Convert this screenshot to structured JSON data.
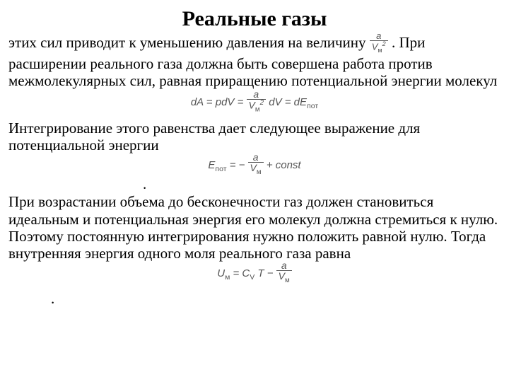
{
  "title": "Реальные газы",
  "p1a": "этих сил приводит к уменьшению давления на величину ",
  "inline_frac": {
    "num": "a",
    "den": "V",
    "den_sub": "м",
    "sup": "2"
  },
  "p1b": ". При расширении реального газа должна быть совершена работа против межмолекулярных сил, равная приращению потенциальной энергии молекул",
  "eq1": {
    "lhs": "dA = pdV = ",
    "frac": {
      "num": "a",
      "den": "V",
      "den_sub": "м",
      "sup": "2"
    },
    "rhs": " dV = dE",
    "rhs_sub": "пот"
  },
  "p2": "Интегрирование этого равенства дает следующее выражение для потенциальной энергии",
  "eq2": {
    "lhs_var": "E",
    "lhs_sub": "пот",
    "mid": " = − ",
    "frac": {
      "num": "a",
      "den": "V",
      "den_sub": "м"
    },
    "tail": " + const"
  },
  "p3": "При возрастании объема до бесконечности газ должен становиться идеальным и потенциальная энергия его молекул должна стремиться к нулю. Поэтому постоянную интегрирования нужно положить равной нулю. Тогда внутренняя энергия одного моля реального газа равна",
  "eq3": {
    "lhs_var": "U",
    "lhs_sub": "м",
    "mid1": " = C",
    "mid1_sub": "V",
    "mid2": "T − ",
    "frac": {
      "num": "a",
      "den": "V",
      "den_sub": "м"
    }
  },
  "dot": "."
}
